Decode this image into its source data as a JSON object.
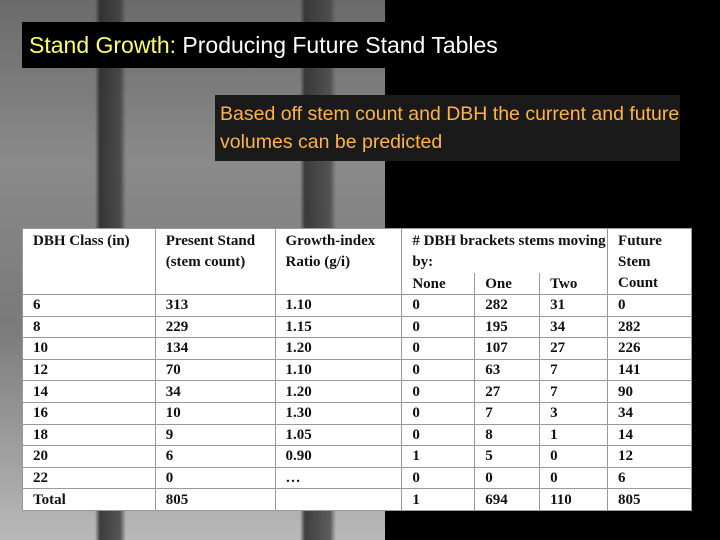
{
  "title": {
    "highlight": "Stand Growth:",
    "rest": "Producing Future Stand Tables"
  },
  "subtitle": "Based off stem count and DBH the current and future volumes can be predicted",
  "table": {
    "header": [
      "DBH Class (in)",
      "Present Stand (stem count)",
      "Growth-index Ratio (g/i)",
      "# DBH brackets stems moving by:",
      "Future Stem Count"
    ],
    "subheader": [
      "None",
      "One",
      "Two"
    ],
    "rows": [
      [
        "6",
        "313",
        "1.10",
        "0",
        "282",
        "31",
        "0"
      ],
      [
        "8",
        "229",
        "1.15",
        "0",
        "195",
        "34",
        "282"
      ],
      [
        "10",
        "134",
        "1.20",
        "0",
        "107",
        "27",
        "226"
      ],
      [
        "12",
        "70",
        "1.10",
        "0",
        "63",
        "7",
        "141"
      ],
      [
        "14",
        "34",
        "1.20",
        "0",
        "27",
        "7",
        "90"
      ],
      [
        "16",
        "10",
        "1.30",
        "0",
        "7",
        "3",
        "34"
      ],
      [
        "18",
        "9",
        "1.05",
        "0",
        "8",
        "1",
        "14"
      ],
      [
        "20",
        "6",
        "0.90",
        "1",
        "5",
        "0",
        "12"
      ],
      [
        "22",
        "0",
        "…",
        "0",
        "0",
        "0",
        "6"
      ]
    ],
    "total": [
      "Total",
      "805",
      null,
      "1",
      "694",
      "110",
      "805"
    ]
  }
}
